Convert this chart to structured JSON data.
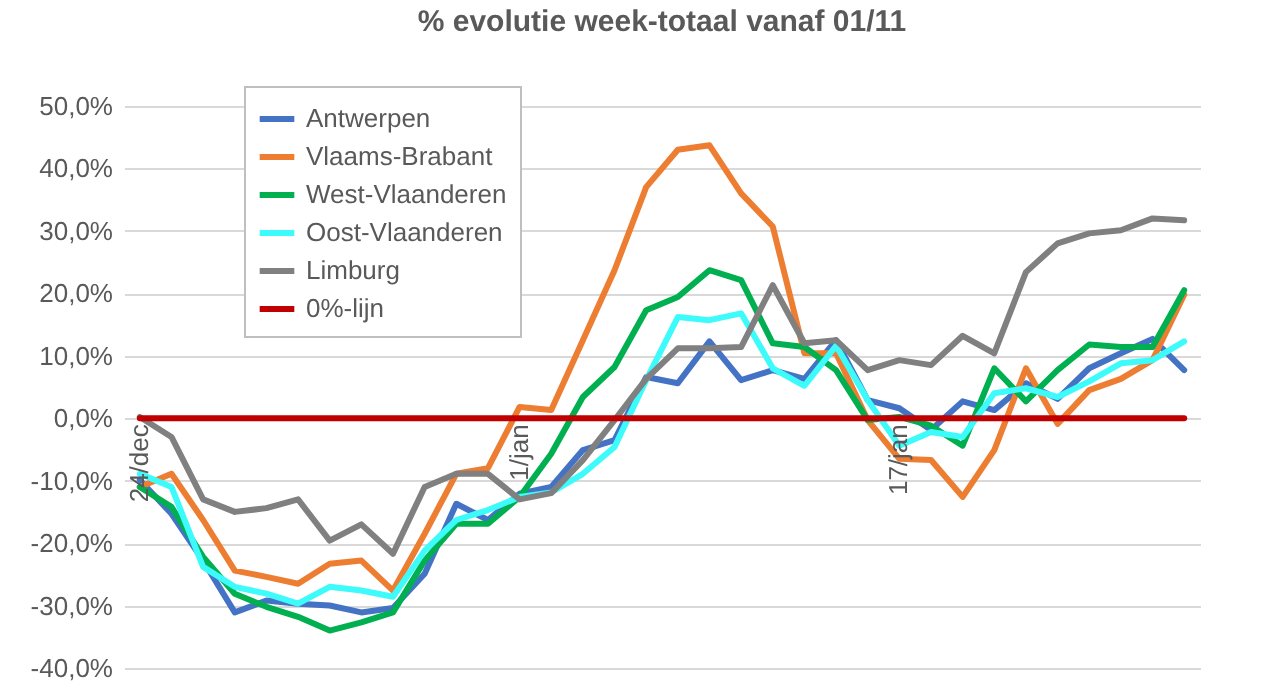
{
  "chart_data": {
    "type": "line",
    "title": "% evolutie week-totaal  vanaf 01/11",
    "categories": [
      "24/dec",
      null,
      null,
      null,
      null,
      null,
      null,
      null,
      null,
      null,
      null,
      null,
      "1/jan",
      null,
      null,
      null,
      null,
      null,
      null,
      null,
      null,
      null,
      null,
      null,
      "17/jan",
      null,
      null,
      null,
      null,
      null,
      null,
      null,
      null,
      null
    ],
    "series": [
      {
        "name": "Antwerpen",
        "color": "#4472c4",
        "values": [
          -9.9,
          -15.3,
          -22.8,
          -31.1,
          -29.2,
          -29.7,
          -30,
          -31.1,
          -30.4,
          -24.9,
          -13.7,
          -16.3,
          -12.1,
          -11,
          -5.1,
          -3.5,
          6.6,
          5.6,
          12.3,
          6.1,
          7.7,
          6.3,
          12.5,
          2.9,
          1.6,
          -1.9,
          2.7,
          1.3,
          5.6,
          3.1,
          8,
          10.4,
          12.7,
          7.7
        ]
      },
      {
        "name": "Vlaams-Brabant",
        "color": "#ed7d31",
        "values": [
          -11,
          -8.9,
          -16.3,
          -24.4,
          -25.4,
          -26.5,
          -23.3,
          -22.8,
          -27.6,
          -18.5,
          -8.9,
          -8,
          1.8,
          1.3,
          12.5,
          23.7,
          37,
          43,
          43.7,
          36,
          30.7,
          10.4,
          10.4,
          -0.3,
          -6.5,
          -6.7,
          -12.6,
          -5.1,
          8,
          -0.9,
          4.5,
          6.3,
          9.3,
          19.8
        ]
      },
      {
        "name": "West-Vlaanderen",
        "color": "#00b050",
        "values": [
          -11,
          -14.2,
          -22.2,
          -28.1,
          -30.2,
          -31.8,
          -34,
          -32.7,
          -31.1,
          -22.8,
          -16.9,
          -16.9,
          -12.6,
          -5.7,
          3.4,
          8.2,
          17.3,
          19.4,
          23.7,
          22.1,
          12,
          11.4,
          7.7,
          -0.3,
          0.2,
          -1.2,
          -4.4,
          8,
          2.7,
          7.7,
          11.8,
          11.4,
          11.4,
          20.5
        ]
      },
      {
        "name": "Oost-Vlaanderen",
        "color": "#3dfbfb",
        "values": [
          -8.9,
          -11,
          -23.8,
          -27,
          -28.1,
          -29.7,
          -27,
          -27.6,
          -28.6,
          -21.2,
          -16.3,
          -14.7,
          -12.6,
          -11.9,
          -8.9,
          -4.6,
          6.1,
          16.2,
          15.7,
          16.8,
          8,
          5.2,
          11.6,
          2.9,
          -4.4,
          -2.2,
          -3,
          4,
          4.8,
          3.4,
          5.9,
          8.8,
          9.3,
          12.3
        ]
      },
      {
        "name": "Limburg",
        "color": "#808080",
        "values": [
          0.2,
          -3,
          -13,
          -15,
          -14.4,
          -13,
          -19.6,
          -17,
          -21.7,
          -11,
          -8.9,
          -8.9,
          -13,
          -12,
          -6.7,
          -0.3,
          6.3,
          11.2,
          11.2,
          11.4,
          21.3,
          12,
          12.5,
          7.7,
          9.3,
          8.5,
          13.2,
          10.4,
          23.4,
          28,
          29.6,
          30.1,
          32,
          31.7
        ]
      },
      {
        "name": "0%-lijn",
        "color": "#c00000",
        "values": [
          0,
          0,
          0,
          0,
          0,
          0,
          0,
          0,
          0,
          0,
          0,
          0,
          0,
          0,
          0,
          0,
          0,
          0,
          0,
          0,
          0,
          0,
          0,
          0,
          0,
          0,
          0,
          0,
          0,
          0,
          0,
          0,
          0,
          0
        ]
      }
    ],
    "ylim": [
      -40,
      50
    ],
    "yticks": [
      {
        "value": -40,
        "label": "-40,0%"
      },
      {
        "value": -30,
        "label": "-30,0%"
      },
      {
        "value": -20,
        "label": "-20,0%"
      },
      {
        "value": -10,
        "label": "-10,0%"
      },
      {
        "value": 0,
        "label": "0,0%"
      },
      {
        "value": 10,
        "label": "10,0%"
      },
      {
        "value": 20,
        "label": "20,0%"
      },
      {
        "value": 30,
        "label": "30,0%"
      },
      {
        "value": 40,
        "label": "40,0%"
      },
      {
        "value": 50,
        "label": "50,0%"
      }
    ],
    "grid": "y",
    "legend": "top left"
  }
}
